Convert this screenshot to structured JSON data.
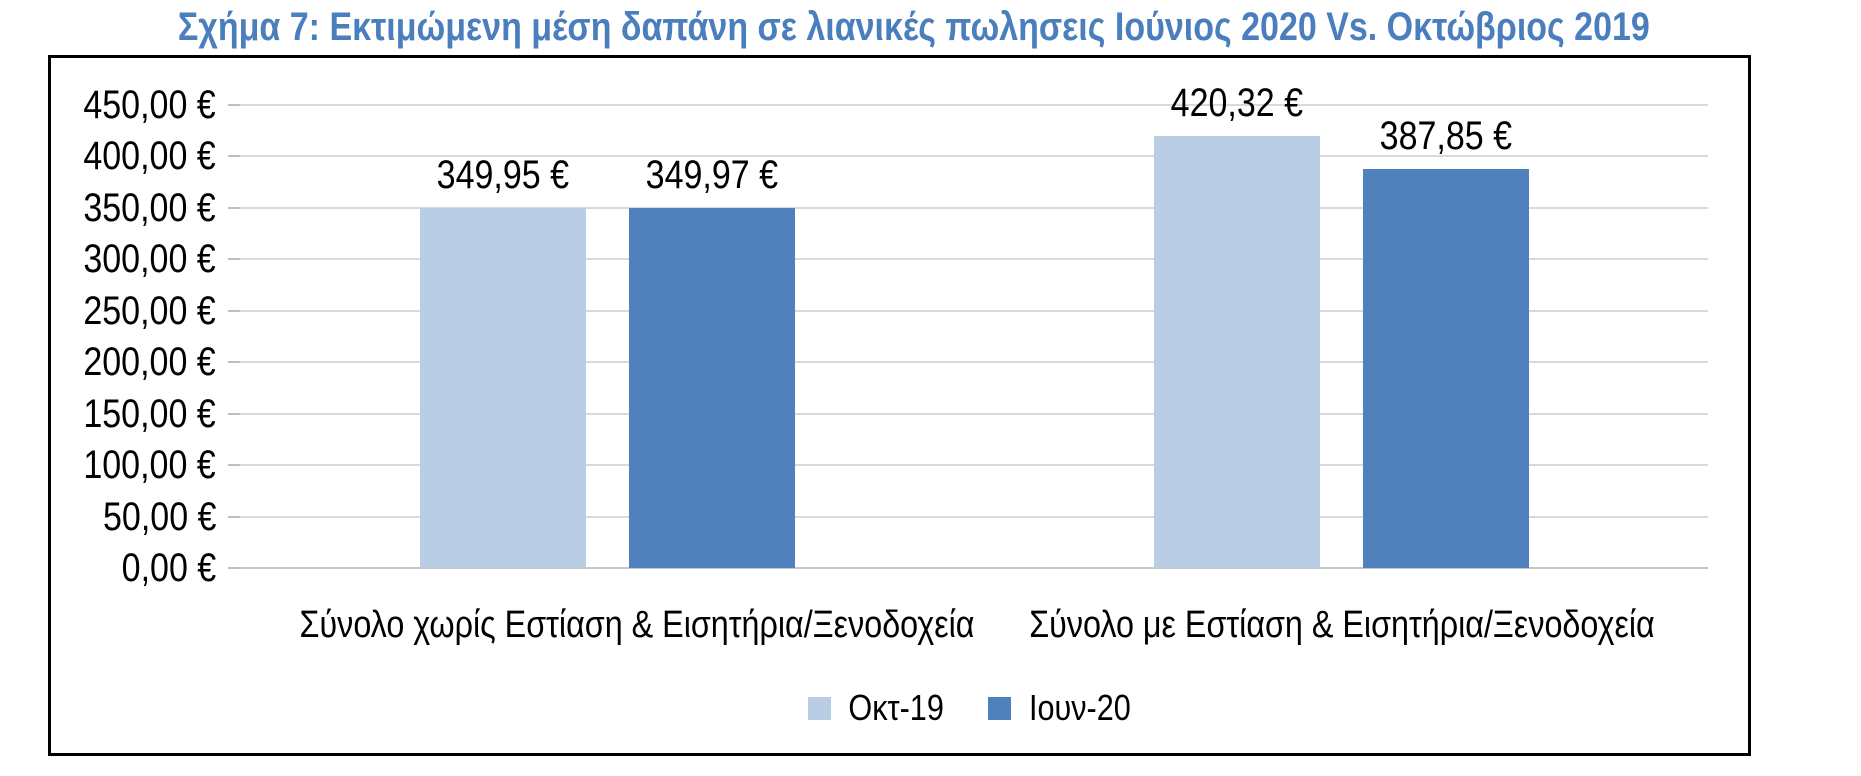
{
  "page": {
    "background": "#ffffff"
  },
  "title": {
    "text": "Σχήμα 7: Εκτιμώμενη μέση δαπάνη σε λιανικές πωλησεις Ιούνιος 2020 Vs. Οκτώβριος 2019",
    "color": "#4a7ebd"
  },
  "chart_data": {
    "type": "bar",
    "title": "Σχήμα 7: Εκτιμώμενη μέση δαπάνη σε λιανικές πωλησεις Ιούνιος 2020 Vs. Οκτώβριος 2019",
    "categories": [
      "Σύνολο χωρίς Εστίαση & Εισητήρια/Ξενοδοχεία",
      "Σύνολο με Εστίαση & Εισητήρια/Ξενοδοχεία"
    ],
    "series": [
      {
        "name": "Οκτ-19",
        "color": "#b9cde4",
        "values": [
          349.95,
          420.32
        ],
        "value_labels": [
          "349,95 €",
          "420,32 €"
        ]
      },
      {
        "name": "Ιουν-20",
        "color": "#4f81bd",
        "values": [
          349.97,
          387.85
        ],
        "value_labels": [
          "349,97 €",
          "387,85 €"
        ]
      }
    ],
    "y_axis": {
      "min": 0,
      "max": 450,
      "step": 50,
      "tick_labels": [
        "0,00 €",
        "50,00 €",
        "100,00 €",
        "150,00 €",
        "200,00 €",
        "250,00 €",
        "300,00 €",
        "350,00 €",
        "400,00 €",
        "450,00 €"
      ]
    },
    "grid": true,
    "gridline_color": "#d9d9d9",
    "baseline_color": "#c6c6c6",
    "legend_position": "bottom",
    "xlabel": "",
    "ylabel": ""
  }
}
